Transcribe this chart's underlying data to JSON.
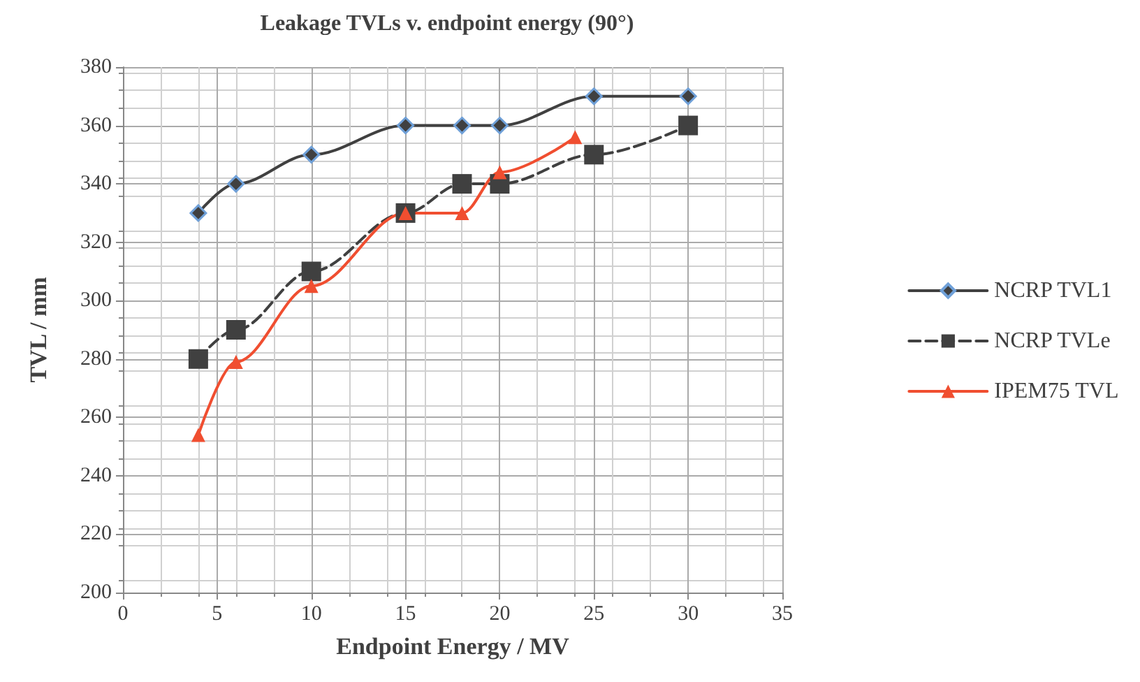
{
  "chart_data": {
    "type": "line",
    "title": "Leakage TVLs v. endpoint energy (90°)",
    "xlabel": "Endpoint Energy / MV",
    "ylabel": "TVL / mm",
    "x": [
      4,
      6,
      10,
      15,
      18,
      20,
      25,
      30
    ],
    "series": [
      {
        "name": "NCRP TVL1",
        "color": "#404040",
        "marker": "diamond",
        "line_style": "solid",
        "values": [
          330,
          340,
          350,
          360,
          360,
          360,
          370,
          370
        ]
      },
      {
        "name": "NCRP TVLe",
        "color": "#404040",
        "marker": "square",
        "line_style": "dashed",
        "values": [
          280,
          290,
          310,
          330,
          340,
          340,
          350,
          360
        ]
      },
      {
        "name": "IPEM75 TVL",
        "color": "#f04e30",
        "marker": "triangle",
        "line_style": "solid",
        "x": [
          4,
          6,
          10,
          15,
          18,
          20,
          24
        ],
        "values": [
          254,
          279,
          305,
          330,
          330,
          344,
          356
        ]
      }
    ],
    "xlim": [
      0,
      35
    ],
    "xticks": [
      0,
      5,
      10,
      15,
      20,
      25,
      30,
      35
    ],
    "ylim": [
      200,
      380
    ],
    "yticks": [
      200,
      220,
      240,
      260,
      280,
      300,
      320,
      340,
      360,
      380
    ],
    "grid": true,
    "legend": "right"
  }
}
